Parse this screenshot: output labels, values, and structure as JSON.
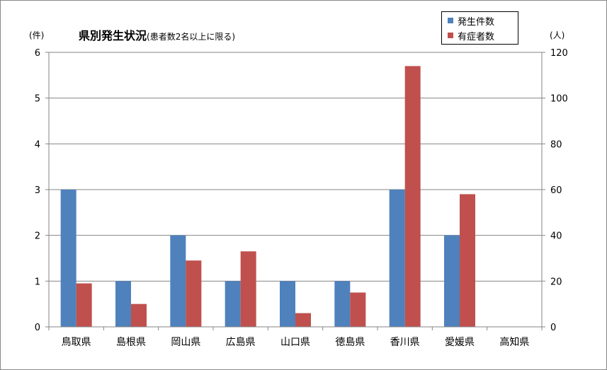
{
  "chart_data": {
    "type": "bar",
    "title": "県別発生状況",
    "subtitle": "(患者数2名以上に限る)",
    "y_left_unit": "(件)",
    "y_right_unit": "(人)",
    "categories": [
      "鳥取県",
      "島根県",
      "岡山県",
      "広島県",
      "山口県",
      "徳島県",
      "香川県",
      "愛媛県",
      "高知県"
    ],
    "series": [
      {
        "name": "発生件数",
        "axis": "left",
        "color": "#4F81BD",
        "values": [
          3,
          1,
          2,
          1,
          1,
          1,
          3,
          2,
          0
        ]
      },
      {
        "name": "有症者数",
        "axis": "right",
        "color": "#C0504D",
        "values": [
          19,
          10,
          29,
          33,
          6,
          15,
          114,
          58,
          0
        ]
      }
    ],
    "y_left": {
      "min": 0,
      "max": 6,
      "ticks": [
        "0",
        "1",
        "2",
        "3",
        "4",
        "5",
        "6"
      ]
    },
    "y_right": {
      "min": 0,
      "max": 120,
      "ticks": [
        "0",
        "20",
        "40",
        "60",
        "80",
        "100",
        "120"
      ]
    },
    "grid": true,
    "legend_position": "top-right"
  }
}
